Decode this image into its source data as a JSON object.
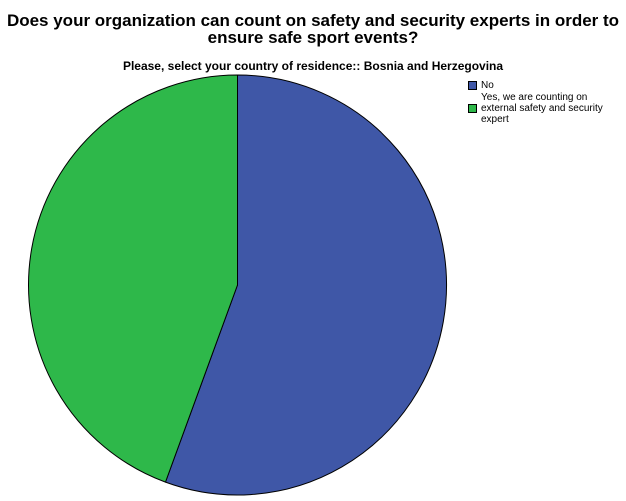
{
  "chart_data": {
    "type": "pie",
    "title_lines": [
      "Does your organization can count on safety and security experts in order to",
      "ensure safe sport events?"
    ],
    "subtitle": "Please, select your country of residence:: Bosnia and Herzegovina",
    "series": [
      {
        "name": "No",
        "value": 55.6,
        "color": "#3f57a7"
      },
      {
        "name": "Yes, we are counting on external safety and security expert",
        "value": 44.4,
        "color": "#2eb84a"
      }
    ],
    "start_angle_deg": 0,
    "direction": "clockwise",
    "legend_position": "top-right"
  }
}
